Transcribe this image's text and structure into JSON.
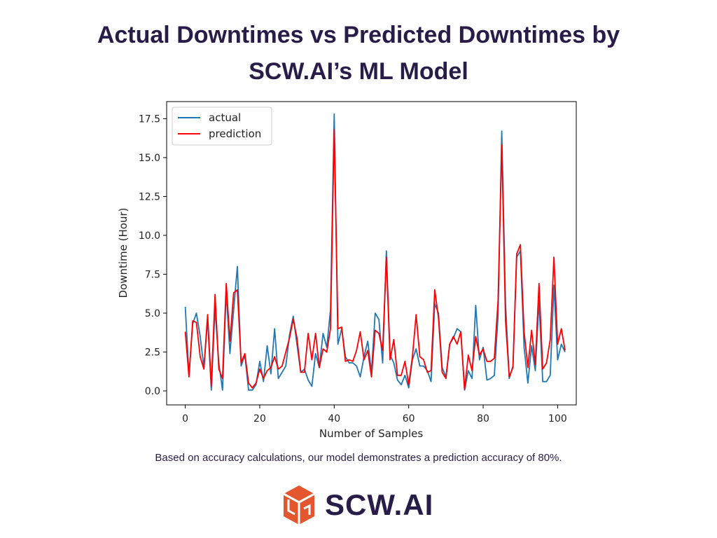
{
  "title_lines": [
    "Actual Downtimes vs Predicted Downtimes by",
    "SCW.AI’s ML Model"
  ],
  "caption": "Based on accuracy calculations, our model demonstrates a prediction accuracy of 80%.",
  "brand": {
    "name": "SCW.AI",
    "accent": "#e4572e",
    "text_color": "#2a1c48"
  },
  "chart_data": {
    "type": "line",
    "title": "",
    "xlabel": "Number of Samples",
    "ylabel": "Downtime (Hour)",
    "xlim": [
      -5,
      105
    ],
    "ylim": [
      -0.9,
      18.6
    ],
    "x_ticks": [
      0,
      20,
      40,
      60,
      80,
      100
    ],
    "x_tick_labels": [
      "0",
      "20",
      "40",
      "60",
      "80",
      "100"
    ],
    "y_ticks": [
      0,
      2.5,
      5,
      7.5,
      10,
      12.5,
      15,
      17.5
    ],
    "y_tick_labels": [
      "0.0",
      "2.5",
      "5.0",
      "7.5",
      "10.0",
      "12.5",
      "15.0",
      "17.5"
    ],
    "legend": "top-left",
    "series": [
      {
        "name": "actual",
        "color": "#1f77b4",
        "values": [
          5.4,
          1.0,
          4.3,
          5.0,
          3.5,
          1.5,
          4.6,
          0.05,
          5.3,
          1.8,
          0.05,
          6.4,
          2.4,
          5.2,
          8.0,
          1.6,
          2.3,
          0.05,
          0.05,
          0.4,
          1.9,
          0.6,
          2.9,
          1.1,
          4.0,
          0.8,
          1.2,
          1.6,
          3.6,
          4.8,
          3.0,
          1.2,
          1.4,
          0.7,
          0.3,
          2.4,
          1.5,
          3.7,
          2.8,
          5.2,
          17.8,
          3.0,
          4.0,
          2.2,
          1.8,
          1.8,
          1.6,
          0.9,
          2.2,
          3.2,
          1.2,
          5.0,
          4.6,
          1.8,
          9.0,
          2.3,
          1.8,
          0.7,
          0.4,
          1.0,
          0.2,
          2.0,
          2.7,
          1.6,
          1.6,
          1.3,
          0.6,
          5.6,
          5.0,
          1.5,
          0.9,
          3.0,
          3.4,
          4.0,
          3.8,
          0.05,
          1.3,
          0.8,
          5.5,
          2.0,
          2.8,
          0.7,
          0.8,
          1.0,
          4.8,
          16.7,
          5.6,
          0.8,
          1.6,
          8.6,
          9.0,
          2.8,
          0.5,
          2.9,
          1.3,
          5.8,
          0.6,
          0.6,
          1.0,
          6.8,
          2.0,
          3.0,
          2.5
        ]
      },
      {
        "name": "prediction",
        "color": "#ff0000",
        "values": [
          3.8,
          0.9,
          4.5,
          4.4,
          2.2,
          1.4,
          4.9,
          0.3,
          6.2,
          1.4,
          0.8,
          6.9,
          3.2,
          6.3,
          6.5,
          1.8,
          2.4,
          0.5,
          0.2,
          0.5,
          1.4,
          0.8,
          1.3,
          1.5,
          2.2,
          1.4,
          1.6,
          2.5,
          3.4,
          4.6,
          3.4,
          1.2,
          1.2,
          3.7,
          2.0,
          3.7,
          1.5,
          2.7,
          2.5,
          4.0,
          16.8,
          4.0,
          4.1,
          1.9,
          2.0,
          1.9,
          2.6,
          3.8,
          2.0,
          2.6,
          0.9,
          3.9,
          3.7,
          2.6,
          8.6,
          2.0,
          3.3,
          1.0,
          1.0,
          1.9,
          0.4,
          2.2,
          4.9,
          2.2,
          2.0,
          1.2,
          1.3,
          6.5,
          4.7,
          1.2,
          0.8,
          3.0,
          3.5,
          3.0,
          3.8,
          0.1,
          2.3,
          1.3,
          3.5,
          2.3,
          2.7,
          1.9,
          1.9,
          2.1,
          5.8,
          15.8,
          4.5,
          0.9,
          1.5,
          8.8,
          9.4,
          3.8,
          1.5,
          3.9,
          1.7,
          6.9,
          1.4,
          1.8,
          3.3,
          8.6,
          3.0,
          4.0,
          2.6
        ]
      }
    ]
  }
}
